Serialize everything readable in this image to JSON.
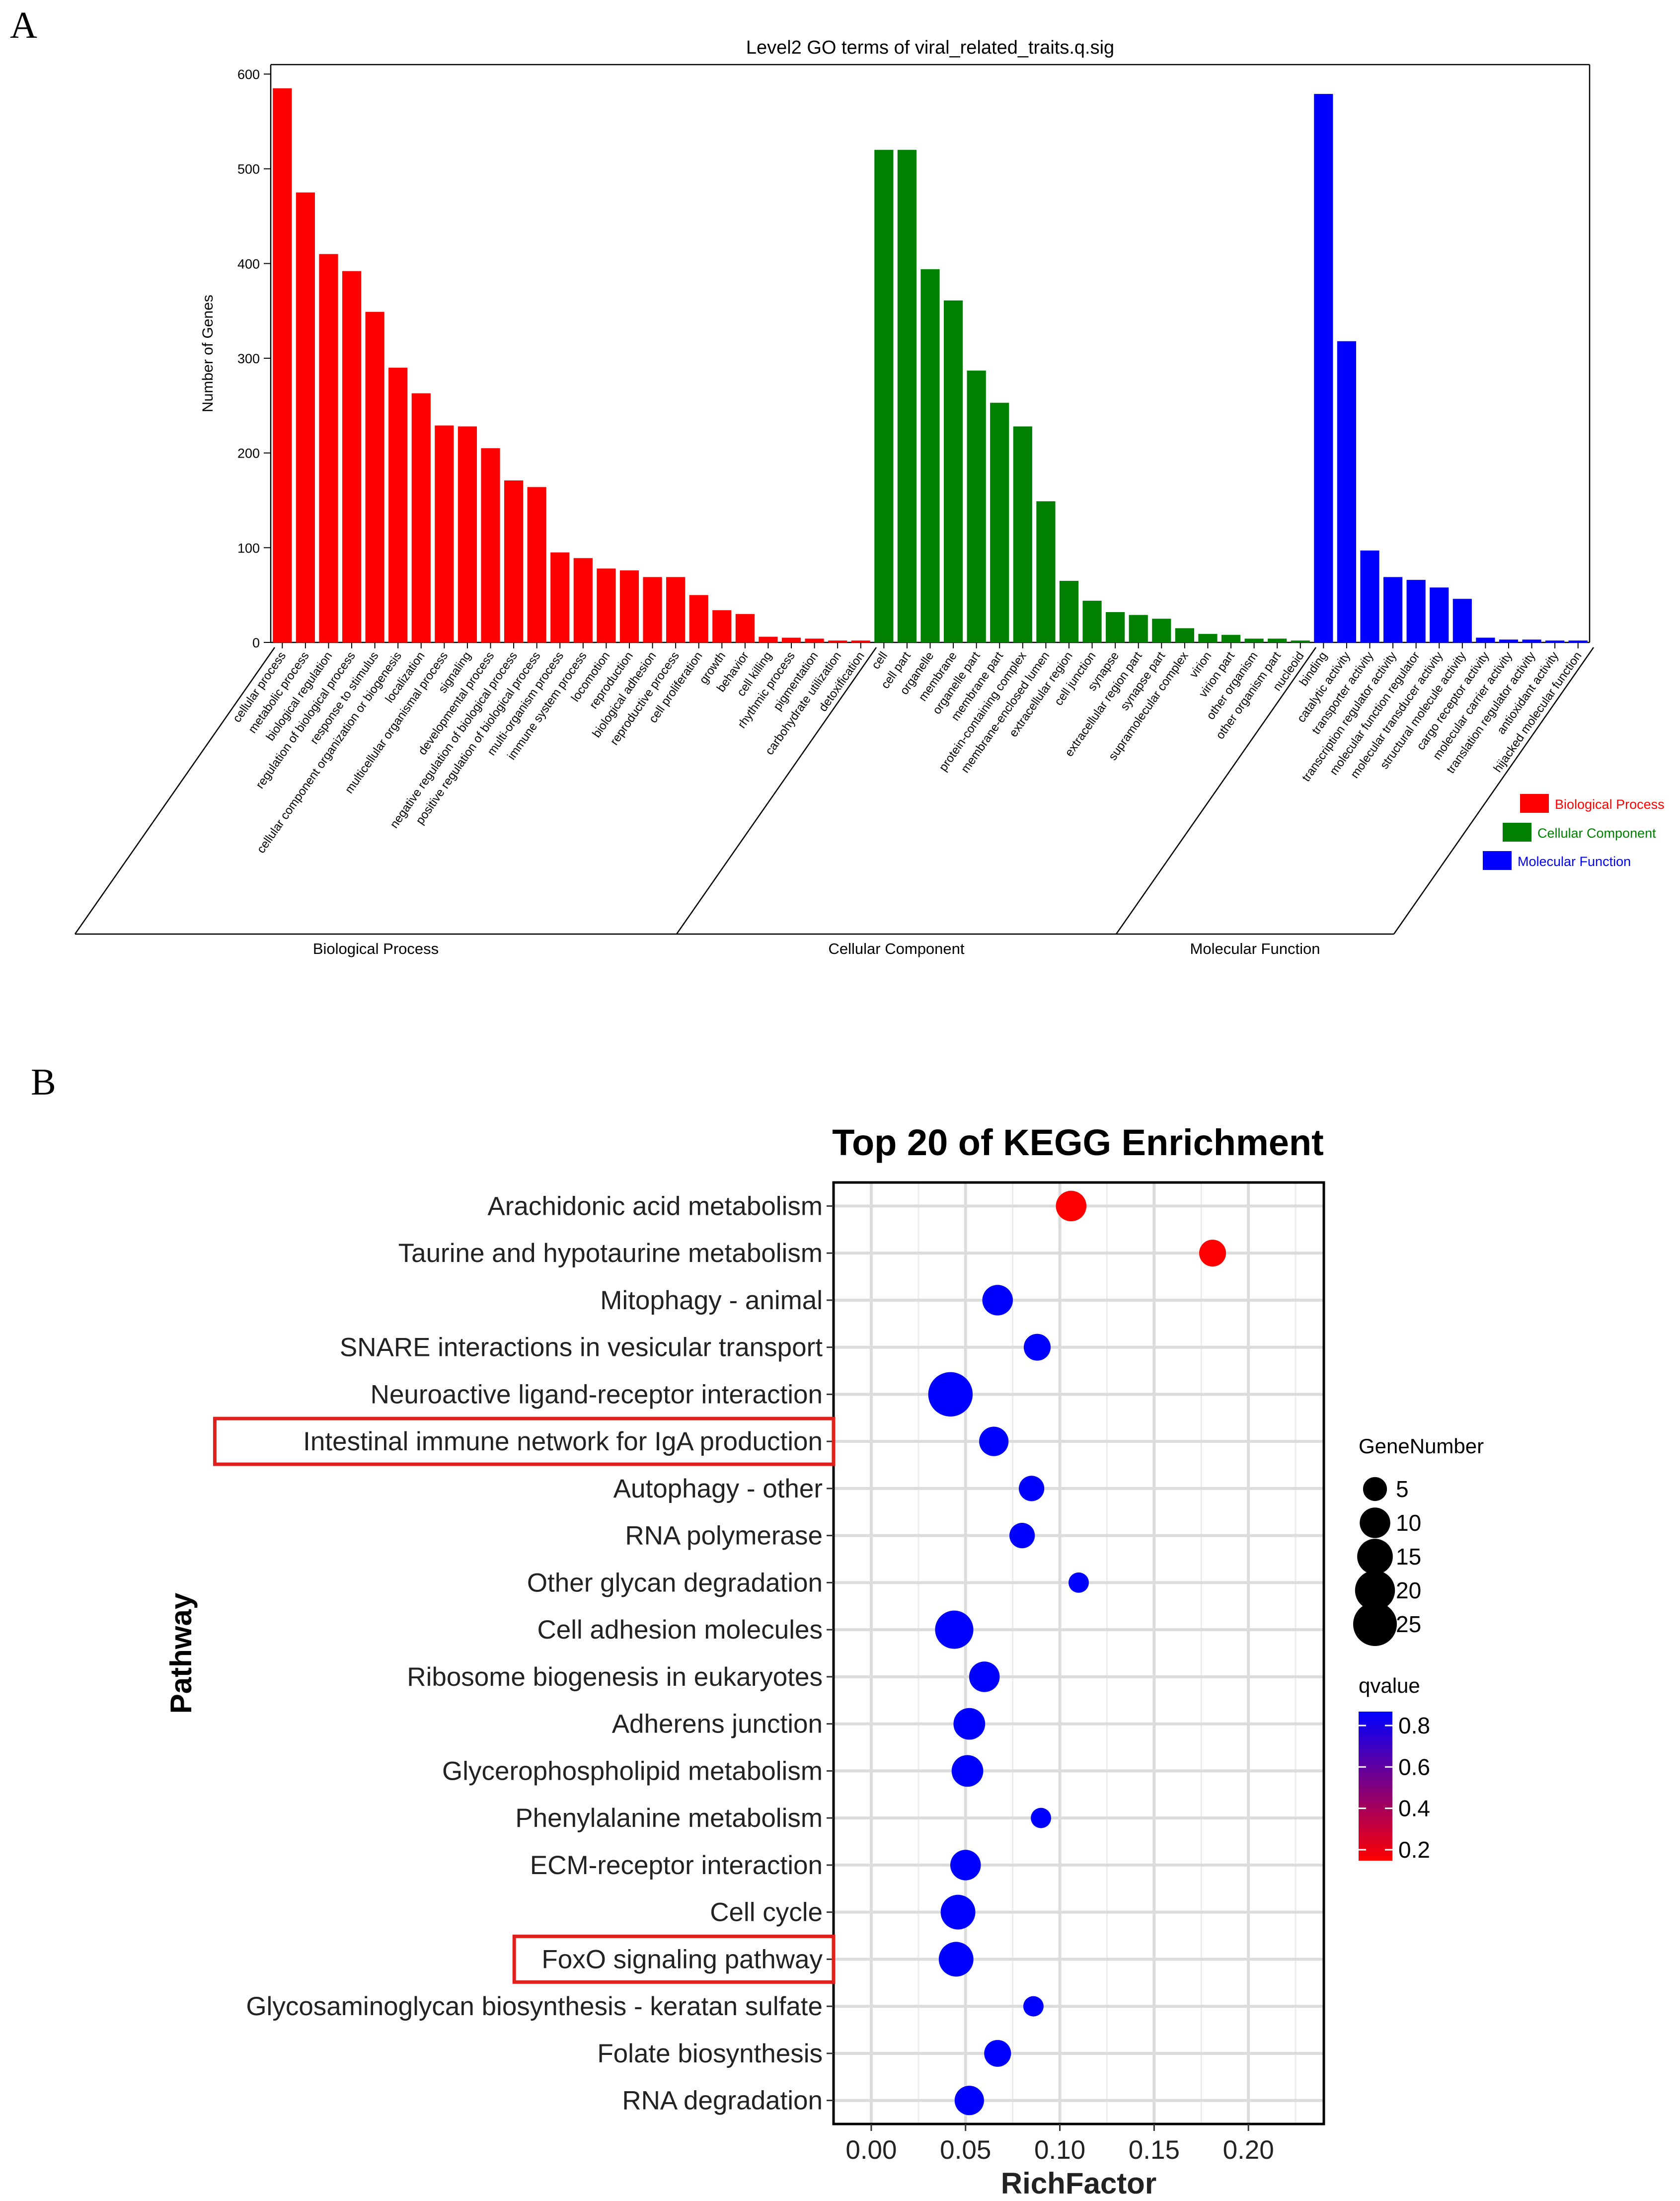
{
  "panels": {
    "a": "A",
    "b": "B"
  },
  "chart_data": [
    {
      "type": "bar",
      "title": "Level2 GO terms of viral_related_traits.q.sig",
      "ylabel": "Number of Genes",
      "xlabel": "",
      "ylim": [
        0,
        610
      ],
      "yticks": [
        0,
        100,
        200,
        300,
        400,
        500,
        600
      ],
      "grid": false,
      "legend_position": "right",
      "legend": [
        "Biological Process",
        "Cellular Component",
        "Molecular Function"
      ],
      "colors": {
        "Biological Process": "#ff0000",
        "Cellular Component": "#008000",
        "Molecular Function": "#0000ff"
      },
      "groups": [
        {
          "name": "Biological Process",
          "categories": [
            "cellular process",
            "metabolic process",
            "biological regulation",
            "regulation of biological process",
            "response to stimulus",
            "cellular component organization or biogenesis",
            "localization",
            "multicellular organismal process",
            "signaling",
            "developmental process",
            "negative regulation of biological process",
            "positive regulation of biological process",
            "multi-organism process",
            "immune system process",
            "locomotion",
            "reproduction",
            "biological adhesion",
            "reproductive process",
            "cell proliferation",
            "growth",
            "behavior",
            "cell killing",
            "rhythmic process",
            "pigmentation",
            "carbohydrate utilization",
            "detoxification"
          ],
          "values": [
            585,
            475,
            410,
            392,
            349,
            290,
            263,
            229,
            228,
            205,
            171,
            164,
            95,
            89,
            78,
            76,
            69,
            69,
            50,
            34,
            30,
            6,
            5,
            4,
            2,
            2
          ]
        },
        {
          "name": "Cellular Component",
          "categories": [
            "cell",
            "cell part",
            "organelle",
            "membrane",
            "organelle part",
            "membrane part",
            "protein-containing complex",
            "membrane-enclosed lumen",
            "extracellular region",
            "cell junction",
            "synapse",
            "extracellular region part",
            "synapse part",
            "supramolecular complex",
            "virion",
            "virion part",
            "other organism",
            "other organism part",
            "nucleoid"
          ],
          "values": [
            520,
            520,
            394,
            361,
            287,
            253,
            228,
            149,
            65,
            44,
            32,
            29,
            25,
            15,
            9,
            8,
            4,
            4,
            2
          ]
        },
        {
          "name": "Molecular Function",
          "categories": [
            "binding",
            "catalytic activity",
            "transporter activity",
            "transcription regulator activity",
            "molecular function regulator",
            "molecular transducer activity",
            "structural molecule activity",
            "cargo receptor activity",
            "molecular carrier activity",
            "translation regulator activity",
            "antioxidant activity",
            "hijacked molecular function"
          ],
          "values": [
            579,
            318,
            97,
            69,
            66,
            58,
            46,
            5,
            3,
            3,
            2,
            2
          ]
        }
      ]
    },
    {
      "type": "scatter",
      "title": "Top 20 of KEGG Enrichment",
      "xlabel": "RichFactor",
      "ylabel": "Pathway",
      "xlim": [
        -0.02,
        0.24
      ],
      "xticks": [
        "0.00",
        "0.05",
        "0.10",
        "0.15",
        "0.20"
      ],
      "grid": true,
      "size_legend_title": "GeneNumber",
      "size_legend": [
        5,
        10,
        15,
        20,
        25
      ],
      "color_legend_title": "qvalue",
      "color_legend": [
        "0.8",
        "0.6",
        "0.4",
        "0.2"
      ],
      "color_range": [
        "#ff0000",
        "#0000ff"
      ],
      "highlighted": [
        "Intestinal immune network for IgA production",
        "FoxO signaling pathway"
      ],
      "points": [
        {
          "pathway": "Arachidonic acid metabolism",
          "rich_factor": 0.106,
          "gene_number": 10,
          "qvalue": 0.2
        },
        {
          "pathway": "Taurine and hypotaurine metabolism",
          "rich_factor": 0.181,
          "gene_number": 7,
          "qvalue": 0.2
        },
        {
          "pathway": "Mitophagy - animal",
          "rich_factor": 0.067,
          "gene_number": 10,
          "qvalue": 0.85
        },
        {
          "pathway": "SNARE interactions in vesicular transport",
          "rich_factor": 0.088,
          "gene_number": 7,
          "qvalue": 0.85
        },
        {
          "pathway": "Neuroactive ligand-receptor interaction",
          "rich_factor": 0.042,
          "gene_number": 26,
          "qvalue": 0.85
        },
        {
          "pathway": "Intestinal immune network for IgA production",
          "rich_factor": 0.065,
          "gene_number": 9,
          "qvalue": 0.85
        },
        {
          "pathway": "Autophagy - other",
          "rich_factor": 0.085,
          "gene_number": 6,
          "qvalue": 0.85
        },
        {
          "pathway": "RNA polymerase",
          "rich_factor": 0.08,
          "gene_number": 6,
          "qvalue": 0.85
        },
        {
          "pathway": "Other glycan degradation",
          "rich_factor": 0.11,
          "gene_number": 3,
          "qvalue": 0.85
        },
        {
          "pathway": "Cell adhesion molecules",
          "rich_factor": 0.044,
          "gene_number": 18,
          "qvalue": 0.85
        },
        {
          "pathway": "Ribosome biogenesis in eukaryotes",
          "rich_factor": 0.06,
          "gene_number": 10,
          "qvalue": 0.85
        },
        {
          "pathway": "Adherens junction",
          "rich_factor": 0.052,
          "gene_number": 11,
          "qvalue": 0.85
        },
        {
          "pathway": "Glycerophospholipid metabolism",
          "rich_factor": 0.051,
          "gene_number": 11,
          "qvalue": 0.85
        },
        {
          "pathway": "Phenylalanine metabolism",
          "rich_factor": 0.09,
          "gene_number": 3,
          "qvalue": 0.85
        },
        {
          "pathway": "ECM-receptor interaction",
          "rich_factor": 0.05,
          "gene_number": 10,
          "qvalue": 0.85
        },
        {
          "pathway": "Cell cycle",
          "rich_factor": 0.046,
          "gene_number": 14,
          "qvalue": 0.85
        },
        {
          "pathway": "FoxO signaling pathway",
          "rich_factor": 0.045,
          "gene_number": 14,
          "qvalue": 0.85
        },
        {
          "pathway": "Glycosaminoglycan biosynthesis - keratan sulfate",
          "rich_factor": 0.086,
          "gene_number": 3,
          "qvalue": 0.85
        },
        {
          "pathway": "Folate biosynthesis",
          "rich_factor": 0.067,
          "gene_number": 7,
          "qvalue": 0.85
        },
        {
          "pathway": "RNA degradation",
          "rich_factor": 0.052,
          "gene_number": 9,
          "qvalue": 0.85
        }
      ]
    }
  ]
}
